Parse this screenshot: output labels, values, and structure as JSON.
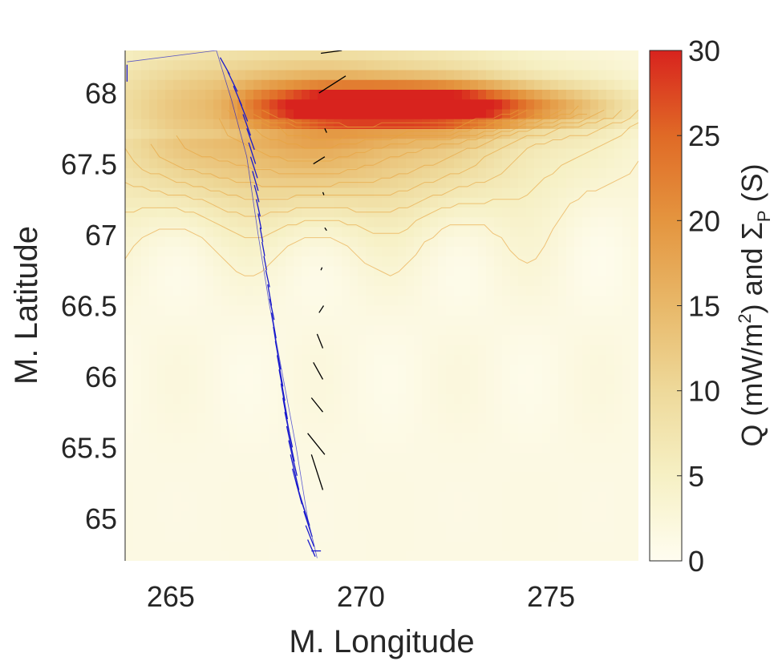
{
  "chart_data": {
    "type": "heatmap",
    "title": "",
    "xlabel": "M. Longitude",
    "ylabel": "M. Latitude",
    "colorbar_label": {
      "q": "Q (mW/m",
      "q_sup": "2",
      "mid": ")  and  ",
      "sigma": "Σ",
      "sigma_sub": "P",
      "units": " (S)"
    },
    "xlim": [
      263.8,
      277.3
    ],
    "ylim": [
      64.7,
      68.3
    ],
    "x_ticks": [
      {
        "value": 265,
        "label": "265"
      },
      {
        "value": 270,
        "label": "270"
      },
      {
        "value": 275,
        "label": "275"
      }
    ],
    "y_ticks": [
      {
        "value": 65,
        "label": "65"
      },
      {
        "value": 65.5,
        "label": "65.5"
      },
      {
        "value": 66,
        "label": "66"
      },
      {
        "value": 66.5,
        "label": "66.5"
      },
      {
        "value": 67,
        "label": "67"
      },
      {
        "value": 67.5,
        "label": "67.5"
      },
      {
        "value": 68,
        "label": "68"
      }
    ],
    "colorbar": {
      "range": [
        0,
        30
      ],
      "ticks": [
        {
          "value": 0,
          "label": "0"
        },
        {
          "value": 5,
          "label": "5"
        },
        {
          "value": 10,
          "label": "10"
        },
        {
          "value": 15,
          "label": "15"
        },
        {
          "value": 20,
          "label": "20"
        },
        {
          "value": 25,
          "label": "25"
        },
        {
          "value": 30,
          "label": "30"
        }
      ],
      "colormap": [
        "#fffdf0",
        "#f6f0c4",
        "#eed99a",
        "#e8b869",
        "#e4953f",
        "#e06a26",
        "#d8231e"
      ]
    },
    "heat_field": {
      "arc_peak": {
        "lon": 271.5,
        "lat": 67.9,
        "value": 29
      },
      "background_value": 1.5,
      "south_edge_lat": 67.7
    },
    "contour_color": "#e8a23a",
    "series": [
      {
        "color": "#1a1acc",
        "track": [
          [
            263.85,
            68.22
          ],
          [
            266.2,
            68.3
          ],
          [
            266.6,
            67.95
          ],
          [
            267.0,
            67.55
          ],
          [
            267.3,
            67.0
          ],
          [
            267.6,
            66.5
          ],
          [
            267.95,
            66.0
          ],
          [
            268.3,
            65.5
          ],
          [
            268.6,
            65.0
          ],
          [
            268.85,
            64.72
          ]
        ],
        "vectors": [
          [
            263.85,
            68.2,
            0,
            -0.12
          ],
          [
            266.3,
            68.25,
            0.25,
            -0.12
          ],
          [
            266.5,
            68.15,
            0.25,
            -0.14
          ],
          [
            266.65,
            68.05,
            0.22,
            -0.14
          ],
          [
            266.8,
            67.95,
            0.22,
            -0.15
          ],
          [
            266.9,
            67.85,
            0.2,
            -0.15
          ],
          [
            267.0,
            67.75,
            0.2,
            -0.15
          ],
          [
            267.05,
            67.65,
            0.18,
            -0.15
          ],
          [
            267.1,
            67.55,
            0.18,
            -0.15
          ],
          [
            267.15,
            67.45,
            0.15,
            -0.14
          ],
          [
            267.2,
            67.35,
            0.12,
            -0.12
          ],
          [
            267.25,
            67.25,
            0.1,
            -0.12
          ],
          [
            267.3,
            67.15,
            0.08,
            -0.11
          ],
          [
            267.35,
            67.05,
            0.07,
            -0.1
          ],
          [
            267.4,
            66.95,
            0.07,
            -0.1
          ],
          [
            267.45,
            66.85,
            0.07,
            -0.1
          ],
          [
            267.5,
            66.75,
            0.1,
            -0.12
          ],
          [
            267.55,
            66.65,
            0.1,
            -0.15
          ],
          [
            267.6,
            66.55,
            0.12,
            -0.15
          ],
          [
            267.65,
            66.45,
            0.12,
            -0.18
          ],
          [
            267.7,
            66.35,
            0.12,
            -0.2
          ],
          [
            267.75,
            66.25,
            0.14,
            -0.2
          ],
          [
            267.8,
            66.15,
            0.15,
            -0.22
          ],
          [
            267.85,
            66.05,
            0.15,
            -0.22
          ],
          [
            267.9,
            65.95,
            0.17,
            -0.25
          ],
          [
            267.95,
            65.85,
            0.17,
            -0.25
          ],
          [
            268.0,
            65.75,
            0.2,
            -0.25
          ],
          [
            268.05,
            65.65,
            0.2,
            -0.25
          ],
          [
            268.1,
            65.55,
            0.22,
            -0.25
          ],
          [
            268.15,
            65.45,
            0.22,
            -0.25
          ],
          [
            268.2,
            65.35,
            0.25,
            -0.25
          ],
          [
            268.3,
            65.25,
            0.25,
            -0.22
          ],
          [
            268.4,
            65.15,
            0.25,
            -0.2
          ],
          [
            268.5,
            65.05,
            0.22,
            -0.18
          ],
          [
            268.55,
            64.95,
            0.22,
            -0.15
          ],
          [
            268.6,
            64.85,
            0.2,
            -0.12
          ],
          [
            268.7,
            64.77,
            0.25,
            0.0
          ]
        ]
      },
      {
        "color": "#000000",
        "vectors": [
          [
            268.95,
            68.28,
            0.55,
            0.02
          ],
          [
            268.9,
            68.0,
            0.7,
            0.12
          ],
          [
            269.05,
            67.75,
            0.05,
            -0.03
          ],
          [
            268.75,
            67.5,
            0.3,
            0.05
          ],
          [
            269.0,
            67.3,
            0.03,
            -0.02
          ],
          [
            269.05,
            67.05,
            0.05,
            -0.02
          ],
          [
            268.95,
            66.75,
            0.03,
            0.02
          ],
          [
            268.9,
            66.45,
            0.12,
            0.05
          ],
          [
            268.85,
            66.3,
            0.15,
            -0.1
          ],
          [
            268.75,
            66.1,
            0.25,
            -0.12
          ],
          [
            268.7,
            65.85,
            0.3,
            -0.1
          ],
          [
            268.6,
            65.6,
            0.45,
            -0.15
          ],
          [
            268.7,
            65.45,
            0.3,
            -0.25
          ]
        ]
      }
    ]
  }
}
